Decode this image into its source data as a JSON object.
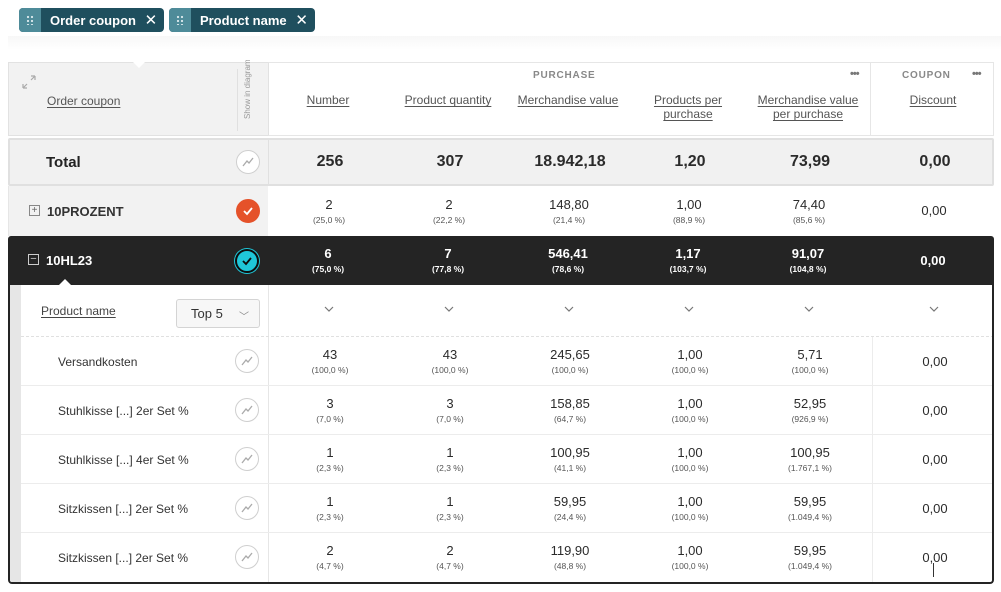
{
  "filters": [
    {
      "label": "Order coupon"
    },
    {
      "label": "Product name"
    }
  ],
  "header": {
    "row_label": "Order coupon",
    "show_in_diagram": "Show in diagram",
    "purchase_group": "PURCHASE",
    "coupon_group": "COUPON",
    "columns": [
      {
        "label": "Number"
      },
      {
        "label": "Product quantity"
      },
      {
        "label": "Merchandise value"
      },
      {
        "label": "Products per purchase"
      },
      {
        "label": "Merchandise value per purchase"
      },
      {
        "label": "Discount"
      }
    ]
  },
  "total": {
    "label": "Total",
    "values": [
      "256",
      "307",
      "18.942,18",
      "1,20",
      "73,99",
      "0,00"
    ]
  },
  "rows": [
    {
      "label": "10PROZENT",
      "selected_color": "#e5522a",
      "values": [
        "2",
        "2",
        "148,80",
        "1,00",
        "74,40",
        "0,00"
      ],
      "pcts": [
        "(25,0 %)",
        "(22,2 %)",
        "(21,4 %)",
        "(88,9 %)",
        "(85,6 %)",
        ""
      ]
    },
    {
      "label": "10HL23",
      "selected_color": "#1fc6d8",
      "values": [
        "6",
        "7",
        "546,41",
        "1,17",
        "91,07",
        "0,00"
      ],
      "pcts": [
        "(75,0 %)",
        "(77,8 %)",
        "(78,6 %)",
        "(103,7 %)",
        "(104,8 %)",
        ""
      ]
    }
  ],
  "sub": {
    "dimension_label": "Product name",
    "top_n": "Top 5",
    "rows": [
      {
        "label": "Versandkosten",
        "values": [
          "43",
          "43",
          "245,65",
          "1,00",
          "5,71",
          "0,00"
        ],
        "pcts": [
          "(100,0 %)",
          "(100,0 %)",
          "(100,0 %)",
          "(100,0 %)",
          "(100,0 %)",
          ""
        ]
      },
      {
        "label": "Stuhlkisse [...] 2er Set %",
        "values": [
          "3",
          "3",
          "158,85",
          "1,00",
          "52,95",
          "0,00"
        ],
        "pcts": [
          "(7,0 %)",
          "(7,0 %)",
          "(64,7 %)",
          "(100,0 %)",
          "(926,9 %)",
          ""
        ]
      },
      {
        "label": "Stuhlkisse [...] 4er Set %",
        "values": [
          "1",
          "1",
          "100,95",
          "1,00",
          "100,95",
          "0,00"
        ],
        "pcts": [
          "(2,3 %)",
          "(2,3 %)",
          "(41,1 %)",
          "(100,0 %)",
          "(1.767,1 %)",
          ""
        ]
      },
      {
        "label": "Sitzkissen [...] 2er Set %",
        "values": [
          "1",
          "1",
          "59,95",
          "1,00",
          "59,95",
          "0,00"
        ],
        "pcts": [
          "(2,3 %)",
          "(2,3 %)",
          "(24,4 %)",
          "(100,0 %)",
          "(1.049,4 %)",
          ""
        ]
      },
      {
        "label": "Sitzkissen [...] 2er Set %",
        "values": [
          "2",
          "2",
          "119,90",
          "1,00",
          "59,95",
          "0,00"
        ],
        "pcts": [
          "(4,7 %)",
          "(4,7 %)",
          "(48,8 %)",
          "(100,0 %)",
          "(1.049,4 %)",
          ""
        ]
      }
    ]
  }
}
